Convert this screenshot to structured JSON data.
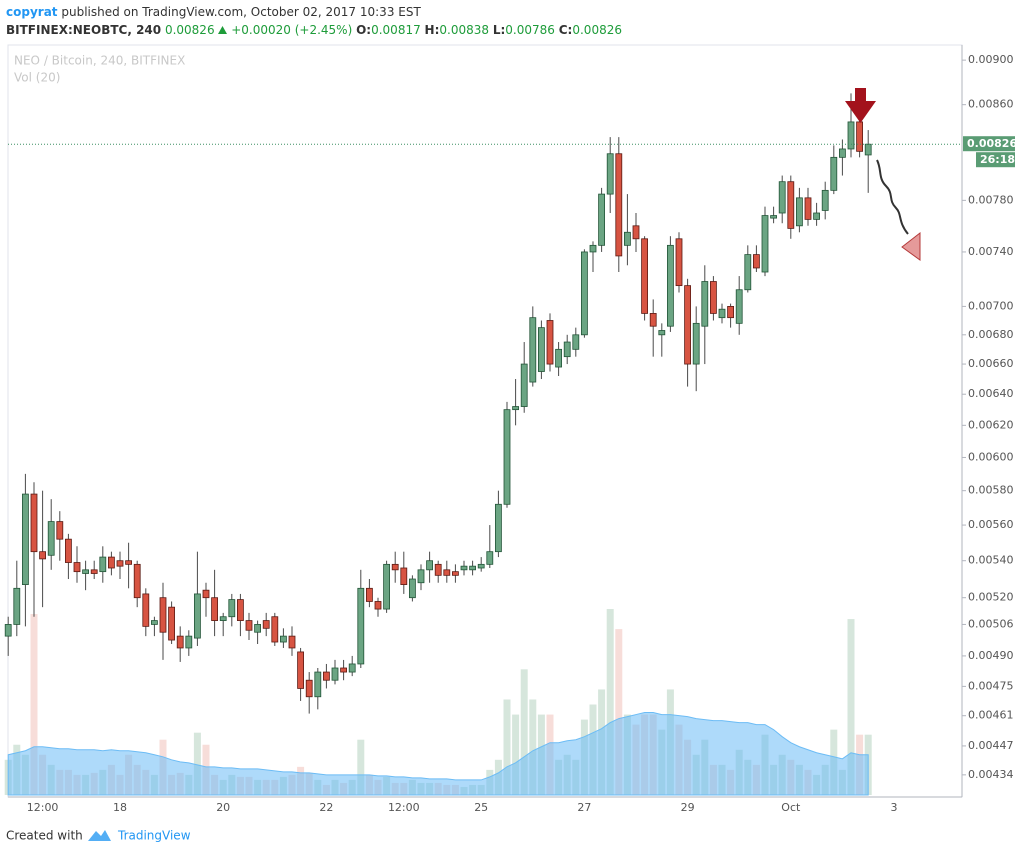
{
  "header": {
    "author": "copyrat",
    "published": "published on TradingView.com, October 02, 2017 10:33 EST",
    "symbol": "BITFINEX:NEOBTC, 240",
    "last": "0.00826",
    "change": "+0.00020 (+2.45%)",
    "ohlc": [
      {
        "label": "O:",
        "value": "0.00817"
      },
      {
        "label": "H:",
        "value": "0.00838"
      },
      {
        "label": "L:",
        "value": "0.00786"
      },
      {
        "label": "C:",
        "value": "0.00826"
      }
    ]
  },
  "chart_data": {
    "type": "candlestick",
    "title": "NEO / Bitcoin, 240, BITFINEX",
    "volume_title": "Vol (20)",
    "log_scale": true,
    "up_color": "#6ba583",
    "down_color": "#d75442",
    "volume_ma_color": "#6cbcf5",
    "ylim": [
      0.004243,
      0.00914
    ],
    "yticks": [
      {
        "value": 0.009,
        "label": "0.00900"
      },
      {
        "value": 0.0086,
        "label": "0.00860"
      },
      {
        "value": 0.0078,
        "label": "0.00780"
      },
      {
        "value": 0.0074,
        "label": "0.00740"
      },
      {
        "value": 0.007,
        "label": "0.00700"
      },
      {
        "value": 0.0068,
        "label": "0.00680"
      },
      {
        "value": 0.0066,
        "label": "0.00660"
      },
      {
        "value": 0.0064,
        "label": "0.00640"
      },
      {
        "value": 0.0062,
        "label": "0.00620"
      },
      {
        "value": 0.006,
        "label": "0.00600"
      },
      {
        "value": 0.0058,
        "label": "0.00580"
      },
      {
        "value": 0.0056,
        "label": "0.00560"
      },
      {
        "value": 0.0054,
        "label": "0.00540"
      },
      {
        "value": 0.0052,
        "label": "0.00520"
      },
      {
        "value": 0.00506,
        "label": "0.00506"
      },
      {
        "value": 0.0049,
        "label": "0.00490"
      },
      {
        "value": 0.00475,
        "label": "0.00475"
      },
      {
        "value": 0.00461,
        "label": "0.00461"
      },
      {
        "value": 0.00447,
        "label": "0.00447"
      },
      {
        "value": 0.00434,
        "label": "0.00434"
      }
    ],
    "last_price": 0.00826,
    "countdown": "26:18",
    "categories": [
      null,
      null,
      null,
      null,
      "12:00",
      null,
      null,
      null,
      null,
      null,
      null,
      null,
      null,
      "18",
      null,
      null,
      null,
      null,
      null,
      null,
      null,
      null,
      null,
      null,
      null,
      "20",
      null,
      null,
      null,
      null,
      null,
      null,
      null,
      null,
      null,
      null,
      null,
      "22",
      null,
      null,
      null,
      null,
      null,
      null,
      null,
      null,
      "12:00",
      null,
      null,
      null,
      null,
      null,
      null,
      null,
      null,
      "25",
      null,
      null,
      null,
      null,
      null,
      null,
      null,
      null,
      null,
      null,
      null,
      "27",
      null,
      null,
      null,
      null,
      null,
      null,
      null,
      null,
      null,
      null,
      null,
      "29",
      null,
      null,
      null,
      null,
      null,
      null,
      null,
      null,
      null,
      null,
      null,
      "Oct",
      null,
      null,
      null,
      null,
      null,
      null,
      null,
      null,
      null,
      null,
      null,
      "3"
    ],
    "open": [
      0.005,
      0.00506,
      0.00527,
      0.00578,
      0.00545,
      0.00543,
      0.00562,
      0.00552,
      0.00539,
      0.00533,
      0.00535,
      0.00534,
      0.00542,
      0.0054,
      0.0054,
      0.00538,
      0.00522,
      0.00506,
      0.0052,
      0.00515,
      0.005,
      0.00494,
      0.00499,
      0.00524,
      0.0052,
      0.00508,
      0.0051,
      0.00519,
      0.00508,
      0.00502,
      0.00508,
      0.0051,
      0.00497,
      0.005,
      0.00492,
      0.00478,
      0.0047,
      0.00482,
      0.00478,
      0.00484,
      0.00482,
      0.00486,
      0.00525,
      0.00518,
      0.00514,
      0.00538,
      0.00536,
      0.0052,
      0.00528,
      0.00535,
      0.00538,
      0.00535,
      0.00534,
      0.00535,
      0.00535,
      0.00536,
      0.00538,
      0.00545,
      0.00572,
      0.0063,
      0.00632,
      0.00648,
      0.00655,
      0.0069,
      0.00658,
      0.00665,
      0.0067,
      0.0068,
      0.0074,
      0.00745,
      0.00785,
      0.00818,
      0.00745,
      0.0076,
      0.0075,
      0.00695,
      0.0068,
      0.00686,
      0.0075,
      0.00715,
      0.0066,
      0.00686,
      0.00718,
      0.00692,
      0.007,
      0.00688,
      0.00712,
      0.00738,
      0.00725,
      0.00766,
      0.0077,
      0.00795,
      0.0076,
      0.00782,
      0.00765,
      0.00772,
      0.00788,
      0.00815,
      0.00822,
      0.00845,
      0.00817,
      null,
      null,
      null
    ],
    "high": [
      0.0051,
      0.0054,
      0.0059,
      0.00585,
      0.0058,
      0.00575,
      0.00568,
      0.00555,
      0.00548,
      0.0054,
      0.0054,
      0.00548,
      0.00545,
      0.00545,
      0.0055,
      0.0054,
      0.00525,
      0.0051,
      0.00528,
      0.00518,
      0.00505,
      0.00503,
      0.00545,
      0.00528,
      0.00535,
      0.00512,
      0.00522,
      0.00522,
      0.00512,
      0.00508,
      0.00512,
      0.00512,
      0.00504,
      0.00505,
      0.00494,
      0.00482,
      0.00484,
      0.00486,
      0.00488,
      0.00488,
      0.0049,
      0.00535,
      0.0053,
      0.0052,
      0.0054,
      0.00545,
      0.00545,
      0.00532,
      0.00538,
      0.00545,
      0.0054,
      0.0054,
      0.00538,
      0.0054,
      0.0054,
      0.00542,
      0.0056,
      0.0058,
      0.00635,
      0.0065,
      0.00675,
      0.007,
      0.0069,
      0.00695,
      0.00675,
      0.0068,
      0.00685,
      0.00742,
      0.00748,
      0.0079,
      0.00832,
      0.00832,
      0.00785,
      0.0077,
      0.00752,
      0.00705,
      0.00688,
      0.00752,
      0.00755,
      0.0072,
      0.007,
      0.0073,
      0.00722,
      0.00702,
      0.00702,
      0.00722,
      0.00745,
      0.00745,
      0.00775,
      0.00775,
      0.008,
      0.008,
      0.0079,
      0.0079,
      0.00778,
      0.00795,
      0.00825,
      0.0083,
      0.0087,
      0.00855,
      0.00838,
      null,
      null,
      null
    ],
    "low": [
      0.0049,
      0.005,
      0.00505,
      0.0051,
      0.00515,
      0.00535,
      0.0054,
      0.0053,
      0.00528,
      0.00524,
      0.0053,
      0.00528,
      0.00532,
      0.0053,
      0.00525,
      0.00515,
      0.005,
      0.005,
      0.00488,
      0.00496,
      0.00487,
      0.0049,
      0.00495,
      0.0051,
      0.005,
      0.005,
      0.00505,
      0.005,
      0.00498,
      0.00496,
      0.005,
      0.00495,
      0.00494,
      0.0049,
      0.00468,
      0.00462,
      0.00464,
      0.00474,
      0.00476,
      0.00478,
      0.0048,
      0.00484,
      0.00515,
      0.0051,
      0.00512,
      0.00528,
      0.00522,
      0.00518,
      0.00524,
      0.00528,
      0.00528,
      0.00528,
      0.00528,
      0.00532,
      0.00532,
      0.00534,
      0.00536,
      0.00542,
      0.0057,
      0.0062,
      0.00628,
      0.00645,
      0.0065,
      0.00655,
      0.00652,
      0.0066,
      0.00665,
      0.00678,
      0.00725,
      0.0074,
      0.0077,
      0.00725,
      0.0073,
      0.0074,
      0.0069,
      0.00665,
      0.00665,
      0.00682,
      0.0071,
      0.00645,
      0.00642,
      0.0066,
      0.0069,
      0.00688,
      0.00685,
      0.0068,
      0.0071,
      0.00725,
      0.00722,
      0.00762,
      0.00762,
      0.0075,
      0.00755,
      0.0076,
      0.0076,
      0.00765,
      0.00785,
      0.008,
      0.00815,
      0.00815,
      0.00786,
      null,
      null,
      null
    ],
    "close": [
      0.00506,
      0.00525,
      0.00578,
      0.00545,
      0.00541,
      0.00562,
      0.00552,
      0.00539,
      0.00534,
      0.00535,
      0.00533,
      0.00542,
      0.00536,
      0.00537,
      0.00538,
      0.0052,
      0.00505,
      0.00508,
      0.00502,
      0.00498,
      0.00494,
      0.005,
      0.00522,
      0.0052,
      0.00508,
      0.0051,
      0.00519,
      0.00508,
      0.00503,
      0.00506,
      0.00504,
      0.00497,
      0.005,
      0.00494,
      0.00474,
      0.0047,
      0.00482,
      0.00478,
      0.00484,
      0.00482,
      0.00486,
      0.00525,
      0.00518,
      0.00514,
      0.00538,
      0.00535,
      0.00527,
      0.0053,
      0.00535,
      0.0054,
      0.00532,
      0.00532,
      0.00532,
      0.00537,
      0.00537,
      0.00538,
      0.00545,
      0.00572,
      0.0063,
      0.00632,
      0.0066,
      0.00692,
      0.00685,
      0.0066,
      0.0067,
      0.00675,
      0.0068,
      0.0074,
      0.00745,
      0.00785,
      0.00818,
      0.00737,
      0.00755,
      0.0075,
      0.00695,
      0.00686,
      0.00683,
      0.00745,
      0.00715,
      0.0066,
      0.00688,
      0.00718,
      0.00695,
      0.00698,
      0.00692,
      0.00712,
      0.00738,
      0.00728,
      0.00768,
      0.00768,
      0.00795,
      0.00758,
      0.00782,
      0.00765,
      0.0077,
      0.00788,
      0.00815,
      0.00822,
      0.00845,
      0.0082,
      0.00826,
      null,
      null,
      null
    ],
    "volume": [
      35,
      50,
      40,
      180,
      40,
      30,
      25,
      25,
      20,
      20,
      22,
      25,
      30,
      20,
      40,
      30,
      25,
      20,
      55,
      20,
      22,
      20,
      62,
      50,
      20,
      15,
      20,
      18,
      18,
      15,
      15,
      15,
      18,
      20,
      28,
      22,
      15,
      10,
      15,
      12,
      15,
      55,
      20,
      15,
      18,
      12,
      12,
      15,
      12,
      12,
      12,
      10,
      10,
      8,
      10,
      10,
      25,
      35,
      95,
      80,
      125,
      95,
      80,
      80,
      35,
      40,
      35,
      75,
      90,
      105,
      185,
      165,
      80,
      70,
      80,
      80,
      65,
      105,
      70,
      55,
      40,
      55,
      30,
      30,
      25,
      45,
      35,
      30,
      60,
      30,
      40,
      35,
      30,
      25,
      20,
      30,
      65,
      25,
      175,
      60,
      60,
      null,
      null,
      null
    ],
    "volume_ma": [
      40,
      42,
      44,
      48,
      48,
      47,
      46,
      46,
      45,
      45,
      45,
      44,
      45,
      44,
      44,
      43,
      42,
      40,
      38,
      35,
      33,
      32,
      30,
      28,
      28,
      27,
      27,
      26,
      26,
      26,
      25,
      24,
      23,
      23,
      22,
      22,
      21,
      20,
      20,
      20,
      20,
      20,
      20,
      19,
      19,
      18,
      18,
      17,
      17,
      16,
      16,
      16,
      15,
      15,
      15,
      15,
      18,
      22,
      28,
      32,
      38,
      44,
      48,
      52,
      52,
      54,
      55,
      58,
      62,
      66,
      72,
      76,
      78,
      80,
      82,
      82,
      80,
      80,
      79,
      78,
      76,
      75,
      74,
      74,
      73,
      72,
      72,
      70,
      70,
      65,
      58,
      52,
      48,
      45,
      42,
      40,
      38,
      36,
      42,
      40,
      40,
      null,
      null,
      null
    ]
  },
  "footer": {
    "created": "Created with",
    "brand": "TradingView"
  }
}
